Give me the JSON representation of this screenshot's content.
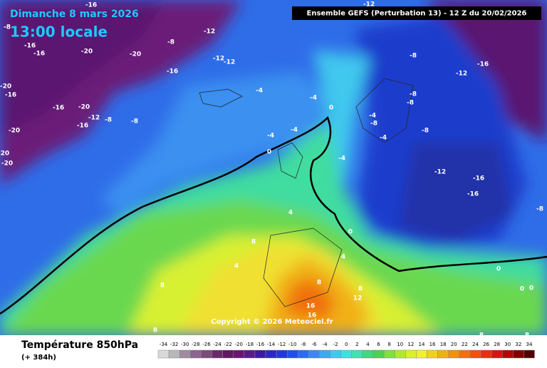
{
  "header": {
    "date": "Dimanche 8 mars 2026",
    "time": "13:00 locale",
    "model": "Ensemble GEFS  (Perturbation 13)  -  12 Z du 20/02/2026",
    "copyright": "Copyright © 2026 Meteociel.fr"
  },
  "footer": {
    "title": "Température 850hPa",
    "lead": "(+ 384h)"
  },
  "contour_labels": [
    -16,
    -8,
    -16,
    -16,
    -20,
    -20,
    -8,
    -16,
    -12,
    -12,
    -12,
    -12,
    -8,
    -12,
    -16,
    -20,
    -16,
    -16,
    -20,
    -12,
    -8,
    -8,
    -16,
    -20,
    -20,
    -20,
    -4,
    -4,
    0,
    -4,
    -4,
    0,
    -4,
    -8,
    -8,
    -4,
    -8,
    -4,
    -8,
    -12,
    -16,
    -16,
    -8,
    4,
    0,
    8,
    4,
    4,
    8,
    8,
    8,
    12,
    16,
    16,
    0,
    0,
    0,
    8,
    8,
    8
  ],
  "colorbar": {
    "values": [
      -34,
      -32,
      -30,
      -28,
      -26,
      -24,
      -22,
      -20,
      -18,
      -16,
      -14,
      -12,
      -10,
      -8,
      -6,
      -4,
      -2,
      0,
      2,
      4,
      6,
      8,
      10,
      12,
      14,
      16,
      18,
      20,
      22,
      24,
      26,
      28,
      30,
      32,
      34
    ],
    "colors": [
      "#d8d8d8",
      "#b8b8b8",
      "#a08ca0",
      "#8c648c",
      "#7a4a7a",
      "#6a2a6a",
      "#601860",
      "#6a1470",
      "#581a8a",
      "#3c1aa0",
      "#2a28c0",
      "#2038d8",
      "#2050e8",
      "#2a6cf0",
      "#3a88f0",
      "#40a8f0",
      "#40c8f0",
      "#40e0e0",
      "#40e0b0",
      "#40d880",
      "#50d050",
      "#80e040",
      "#b0e830",
      "#d8f030",
      "#f0f030",
      "#f0d020",
      "#f0b018",
      "#f09010",
      "#f07010",
      "#f05010",
      "#e83010",
      "#d01810",
      "#b00808",
      "#800000",
      "#500000"
    ]
  }
}
